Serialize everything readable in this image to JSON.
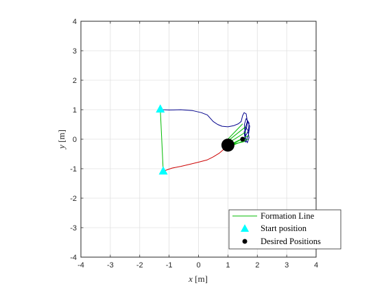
{
  "chart_data": {
    "type": "line",
    "title": "",
    "xlabel": {
      "var": "x",
      "unit": " [m]"
    },
    "ylabel": {
      "var": "y",
      "unit": " [m]"
    },
    "xlim": [
      -4,
      4
    ],
    "ylim": [
      -4,
      4
    ],
    "xticks": [
      -4,
      -3,
      -2,
      -1,
      0,
      1,
      2,
      3,
      4
    ],
    "yticks": [
      -4,
      -3,
      -2,
      -1,
      0,
      1,
      2,
      3,
      4
    ],
    "xtick_labels": [
      "-4",
      "-3",
      "-2",
      "-1",
      "0",
      "1",
      "2",
      "3",
      "4"
    ],
    "ytick_labels": [
      "-4",
      "-3",
      "-2",
      "-1",
      "0",
      "1",
      "2",
      "3",
      "4"
    ],
    "grid": true,
    "legend_position": "bottom-right",
    "legend": [
      "Formation Line",
      "Start position",
      "Desired Positions"
    ],
    "colors": {
      "formation_line": "#00bb00",
      "start_marker": "#00ffff",
      "desired_marker": "#000000",
      "path_robot_1": "#00008b",
      "path_robot_2": "#cc0000",
      "grid": "#e0e0e0",
      "axes": "#262626"
    },
    "start_positions": [
      {
        "x": -1.3,
        "y": 1.02
      },
      {
        "x": -1.2,
        "y": -1.08
      }
    ],
    "desired_positions": [
      {
        "x": 1.0,
        "y": -0.2,
        "size": "large"
      },
      {
        "x": 1.5,
        "y": 0.0,
        "size": "small"
      }
    ],
    "formation_lines": [
      [
        [
          -1.3,
          1.02
        ],
        [
          -1.2,
          -1.08
        ]
      ],
      [
        [
          0.95,
          -0.05
        ],
        [
          1.5,
          0.52
        ]
      ],
      [
        [
          0.95,
          -0.1
        ],
        [
          1.6,
          0.42
        ]
      ],
      [
        [
          0.98,
          -0.15
        ],
        [
          1.62,
          0.25
        ]
      ],
      [
        [
          1.0,
          -0.22
        ],
        [
          1.55,
          0.05
        ]
      ],
      [
        [
          1.0,
          -0.2
        ],
        [
          1.58,
          -0.08
        ]
      ],
      [
        [
          0.9,
          -0.3
        ],
        [
          1.7,
          0.12
        ]
      ],
      [
        [
          1.05,
          -0.25
        ],
        [
          1.68,
          0.0
        ]
      ]
    ],
    "paths": [
      {
        "color_key": "path_robot_1",
        "x": [
          -1.3,
          -1.2,
          -1.0,
          -0.6,
          -0.2,
          0.1,
          0.3,
          0.5,
          0.65,
          0.8,
          1.0,
          1.2,
          1.35,
          1.45,
          1.5,
          1.55,
          1.62,
          1.66,
          1.64,
          1.58,
          1.56,
          1.62,
          1.72,
          1.7,
          1.6,
          1.58,
          1.66,
          1.74,
          1.7,
          1.62,
          1.56,
          1.6,
          1.68,
          1.72,
          1.66,
          1.58,
          1.55,
          1.58,
          1.62,
          1.6,
          1.55,
          1.5
        ],
        "y": [
          1.02,
          1.0,
          0.99,
          1.0,
          0.97,
          0.9,
          0.82,
          0.6,
          0.5,
          0.44,
          0.42,
          0.46,
          0.52,
          0.6,
          0.8,
          0.9,
          0.86,
          0.6,
          0.4,
          0.25,
          0.5,
          0.7,
          0.55,
          0.3,
          0.1,
          0.35,
          0.6,
          0.45,
          0.15,
          -0.05,
          0.2,
          0.42,
          0.3,
          0.05,
          -0.12,
          0.05,
          0.25,
          0.15,
          -0.05,
          -0.1,
          0.0,
          0.0
        ]
      },
      {
        "color_key": "path_robot_2",
        "x": [
          -1.2,
          -1.1,
          -0.9,
          -0.6,
          -0.3,
          0.0,
          0.3,
          0.5,
          0.7,
          0.85,
          0.95,
          1.0
        ],
        "y": [
          -1.08,
          -1.05,
          -0.98,
          -0.92,
          -0.85,
          -0.78,
          -0.7,
          -0.6,
          -0.48,
          -0.35,
          -0.25,
          -0.2
        ]
      }
    ]
  }
}
